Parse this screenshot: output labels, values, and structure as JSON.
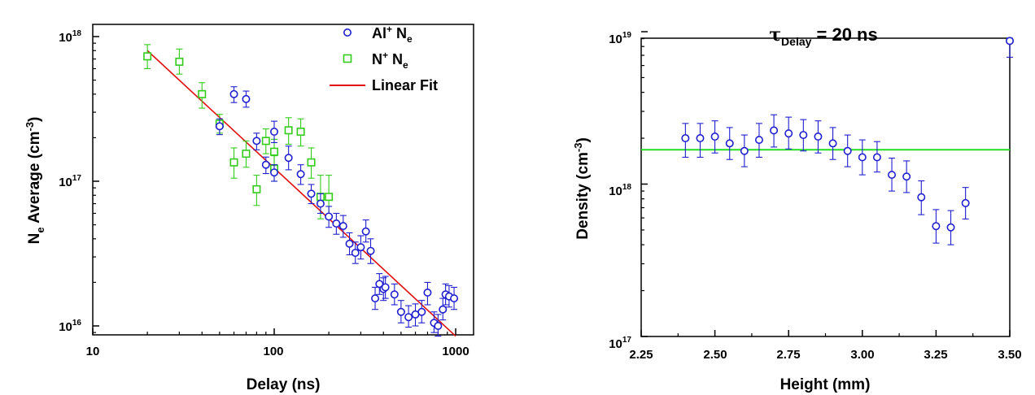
{
  "chart_data": [
    {
      "type": "scatter",
      "title": "",
      "xlabel": {
        "main": "Delay (ns)"
      },
      "ylabel": {
        "N": "N",
        "sub": "e",
        "rest": " Average (cm",
        "sup": "-3",
        "close": ")"
      },
      "x_scale": "log",
      "y_scale": "log",
      "xlim": [
        10,
        1000
      ],
      "ylim": [
        8000000000000000.0,
        1.3e+18
      ],
      "x_ticks": [
        {
          "value": 10,
          "label": "10"
        },
        {
          "value": 100,
          "label": "100"
        },
        {
          "value": 1000,
          "label": "1000"
        }
      ],
      "y_ticks": [
        {
          "value": 1e+16,
          "base": "10",
          "exp": "16"
        },
        {
          "value": 1e+17,
          "base": "10",
          "exp": "17"
        },
        {
          "value": 1e+18,
          "base": "10",
          "exp": "18"
        }
      ],
      "legend_position": "top-right",
      "legend": [
        {
          "key": "al",
          "symbol": "circle",
          "pre": "Al",
          "sup": "+",
          "mid": " N",
          "sub": "e"
        },
        {
          "key": "n",
          "symbol": "square",
          "pre": "N",
          "sup": "+",
          "mid": " N",
          "sub": "e"
        },
        {
          "key": "fit",
          "symbol": "line",
          "pre": "Linear Fit",
          "sup": "",
          "mid": "",
          "sub": ""
        }
      ],
      "series": [
        {
          "key": "al",
          "marker": "circle",
          "color": "#1f1fd0",
          "points": [
            {
              "x": 50,
              "y": 2.4e+17,
              "lo": 2.1e+17,
              "hi": 2.7e+17
            },
            {
              "x": 60,
              "y": 4e+17,
              "lo": 3.5e+17,
              "hi": 4.5e+17
            },
            {
              "x": 70,
              "y": 3.7e+17,
              "lo": 3.25e+17,
              "hi": 4.2e+17
            },
            {
              "x": 80,
              "y": 1.9e+17,
              "lo": 1.65e+17,
              "hi": 2.15e+17
            },
            {
              "x": 90,
              "y": 1.3e+17,
              "lo": 1.13e+17,
              "hi": 1.47e+17
            },
            {
              "x": 100,
              "y": 2.2e+17,
              "lo": 1.85e+17,
              "hi": 2.6e+17
            },
            {
              "x": 100,
              "y": 1.15e+17,
              "lo": 1e+17,
              "hi": 1.3e+17
            },
            {
              "x": 120,
              "y": 1.45e+17,
              "lo": 1.2e+17,
              "hi": 1.75e+17
            },
            {
              "x": 140,
              "y": 1.12e+17,
              "lo": 9.5e+16,
              "hi": 1.3e+17
            },
            {
              "x": 160,
              "y": 8.2e+16,
              "lo": 7e+16,
              "hi": 9.5e+16
            },
            {
              "x": 180,
              "y": 7e+16,
              "lo": 6e+16,
              "hi": 8.2e+16
            },
            {
              "x": 200,
              "y": 5.7e+16,
              "lo": 4.8e+16,
              "hi": 6.7e+16
            },
            {
              "x": 220,
              "y": 5.1e+16,
              "lo": 4.3e+16,
              "hi": 6e+16
            },
            {
              "x": 240,
              "y": 4.9e+16,
              "lo": 4.1e+16,
              "hi": 5.8e+16
            },
            {
              "x": 260,
              "y": 3.7e+16,
              "lo": 3.1e+16,
              "hi": 4.4e+16
            },
            {
              "x": 280,
              "y": 3.2e+16,
              "lo": 2.7e+16,
              "hi": 3.8e+16
            },
            {
              "x": 300,
              "y": 3.5e+16,
              "lo": 2.9e+16,
              "hi": 4.2e+16
            },
            {
              "x": 320,
              "y": 4.5e+16,
              "lo": 3.8e+16,
              "hi": 5.4e+16
            },
            {
              "x": 340,
              "y": 3.3e+16,
              "lo": 2.7e+16,
              "hi": 4e+16
            },
            {
              "x": 360,
              "y": 1.55e+16,
              "lo": 1.3e+16,
              "hi": 1.85e+16
            },
            {
              "x": 380,
              "y": 1.95e+16,
              "lo": 1.65e+16,
              "hi": 2.3e+16
            },
            {
              "x": 400,
              "y": 1.8e+16,
              "lo": 1.5e+16,
              "hi": 2.15e+16
            },
            {
              "x": 410,
              "y": 1.85e+16,
              "lo": 1.55e+16,
              "hi": 2.2e+16
            },
            {
              "x": 460,
              "y": 1.65e+16,
              "lo": 1.4e+16,
              "hi": 1.95e+16
            },
            {
              "x": 500,
              "y": 1.25e+16,
              "lo": 1.05e+16,
              "hi": 1.5e+16
            },
            {
              "x": 550,
              "y": 1.15e+16,
              "lo": 9800000000000000.0,
              "hi": 1.38e+16
            },
            {
              "x": 600,
              "y": 1.2e+16,
              "lo": 1e+16,
              "hi": 1.42e+16
            },
            {
              "x": 650,
              "y": 1.25e+16,
              "lo": 1.05e+16,
              "hi": 1.5e+16
            },
            {
              "x": 700,
              "y": 1.7e+16,
              "lo": 1.4e+16,
              "hi": 2e+16
            },
            {
              "x": 760,
              "y": 1.05e+16,
              "lo": 9000000000000000.0,
              "hi": 1.25e+16
            },
            {
              "x": 800,
              "y": 1e+16,
              "lo": 8500000000000000.0,
              "hi": 1.2e+16
            },
            {
              "x": 850,
              "y": 1.3e+16,
              "lo": 1.1e+16,
              "hi": 1.55e+16
            },
            {
              "x": 880,
              "y": 1.65e+16,
              "lo": 1.4e+16,
              "hi": 1.95e+16
            },
            {
              "x": 920,
              "y": 1.6e+16,
              "lo": 1.35e+16,
              "hi": 1.9e+16
            },
            {
              "x": 980,
              "y": 1.55e+16,
              "lo": 1.3e+16,
              "hi": 1.85e+16
            }
          ]
        },
        {
          "key": "n",
          "marker": "square",
          "color": "#33cc1a",
          "points": [
            {
              "x": 20,
              "y": 7.3e+17,
              "lo": 6e+17,
              "hi": 8.8e+17
            },
            {
              "x": 30,
              "y": 6.7e+17,
              "lo": 5.5e+17,
              "hi": 8.2e+17
            },
            {
              "x": 40,
              "y": 4e+17,
              "lo": 3.2e+17,
              "hi": 4.8e+17
            },
            {
              "x": 50,
              "y": 2.5e+17,
              "lo": 2.15e+17,
              "hi": 2.9e+17
            },
            {
              "x": 60,
              "y": 1.35e+17,
              "lo": 1.05e+17,
              "hi": 1.7e+17
            },
            {
              "x": 70,
              "y": 1.55e+17,
              "lo": 1.25e+17,
              "hi": 1.9e+17
            },
            {
              "x": 80,
              "y": 8.8e+16,
              "lo": 6.8e+16,
              "hi": 1.1e+17
            },
            {
              "x": 90,
              "y": 1.9e+17,
              "lo": 1.55e+17,
              "hi": 2.3e+17
            },
            {
              "x": 100,
              "y": 1.6e+17,
              "lo": 1.3e+17,
              "hi": 1.95e+17
            },
            {
              "x": 100,
              "y": 1.22e+17,
              "lo": 1e+17,
              "hi": 1.5e+17
            },
            {
              "x": 120,
              "y": 2.25e+17,
              "lo": 1.8e+17,
              "hi": 2.75e+17
            },
            {
              "x": 140,
              "y": 2.2e+17,
              "lo": 1.75e+17,
              "hi": 2.7e+17
            },
            {
              "x": 160,
              "y": 1.35e+17,
              "lo": 1.05e+17,
              "hi": 1.7e+17
            },
            {
              "x": 180,
              "y": 7.8e+16,
              "lo": 5.5e+16,
              "hi": 1.1e+17
            },
            {
              "x": 200,
              "y": 7.8e+16,
              "lo": 5.5e+16,
              "hi": 1.1e+17
            }
          ]
        },
        {
          "key": "fit",
          "marker": "line",
          "color": "#e01010",
          "points": [
            {
              "x": 20,
              "y": 8e+17
            },
            {
              "x": 1000,
              "y": 8500000000000000.0
            }
          ]
        }
      ]
    },
    {
      "type": "scatter",
      "title": {
        "tau": "τ",
        "sub": "Delay",
        "rest": " = 20 ns"
      },
      "xlabel": {
        "main": "Height (mm)"
      },
      "ylabel": {
        "pre": "Density (cm",
        "sup": "-3",
        "close": ")"
      },
      "x_scale": "linear",
      "y_scale": "log",
      "xlim": [
        2.25,
        3.5
      ],
      "ylim": [
        1e+17,
        1e+19
      ],
      "x_ticks": [
        {
          "value": 2.25,
          "label": "2.25"
        },
        {
          "value": 2.5,
          "label": "2.50"
        },
        {
          "value": 2.75,
          "label": "2.75"
        },
        {
          "value": 3.0,
          "label": "3.00"
        },
        {
          "value": 3.25,
          "label": "3.25"
        },
        {
          "value": 3.5,
          "label": "3.50"
        }
      ],
      "y_ticks": [
        {
          "value": 1e+17,
          "base": "10",
          "exp": "17"
        },
        {
          "value": 1e+18,
          "base": "10",
          "exp": "18"
        },
        {
          "value": 1e+19,
          "base": "10",
          "exp": "19"
        }
      ],
      "reference_line": {
        "y": 1.68e+18,
        "color": "#22dd22"
      },
      "series": [
        {
          "key": "density",
          "marker": "circle",
          "color": "#1f1fd0",
          "points": [
            {
              "x": 2.4,
              "y": 2e+18,
              "lo": 1.5e+18,
              "hi": 2.5e+18
            },
            {
              "x": 2.45,
              "y": 2e+18,
              "lo": 1.5e+18,
              "hi": 2.5e+18
            },
            {
              "x": 2.5,
              "y": 2.05e+18,
              "lo": 1.6e+18,
              "hi": 2.6e+18
            },
            {
              "x": 2.55,
              "y": 1.85e+18,
              "lo": 1.45e+18,
              "hi": 2.35e+18
            },
            {
              "x": 2.6,
              "y": 1.65e+18,
              "lo": 1.3e+18,
              "hi": 2.1e+18
            },
            {
              "x": 2.65,
              "y": 1.95e+18,
              "lo": 1.5e+18,
              "hi": 2.5e+18
            },
            {
              "x": 2.7,
              "y": 2.25e+18,
              "lo": 1.75e+18,
              "hi": 2.85e+18
            },
            {
              "x": 2.75,
              "y": 2.15e+18,
              "lo": 1.7e+18,
              "hi": 2.75e+18
            },
            {
              "x": 2.8,
              "y": 2.1e+18,
              "lo": 1.65e+18,
              "hi": 2.65e+18
            },
            {
              "x": 2.85,
              "y": 2.05e+18,
              "lo": 1.6e+18,
              "hi": 2.6e+18
            },
            {
              "x": 2.9,
              "y": 1.85e+18,
              "lo": 1.45e+18,
              "hi": 2.35e+18
            },
            {
              "x": 2.95,
              "y": 1.65e+18,
              "lo": 1.3e+18,
              "hi": 2.1e+18
            },
            {
              "x": 3.0,
              "y": 1.5e+18,
              "lo": 1.15e+18,
              "hi": 1.95e+18
            },
            {
              "x": 3.05,
              "y": 1.5e+18,
              "lo": 1.2e+18,
              "hi": 1.9e+18
            },
            {
              "x": 3.1,
              "y": 1.15e+18,
              "lo": 9e+17,
              "hi": 1.48e+18
            },
            {
              "x": 3.15,
              "y": 1.12e+18,
              "lo": 8.8e+17,
              "hi": 1.42e+18
            },
            {
              "x": 3.2,
              "y": 8.2e+17,
              "lo": 6.3e+17,
              "hi": 1.05e+18
            },
            {
              "x": 3.25,
              "y": 5.3e+17,
              "lo": 4.1e+17,
              "hi": 6.8e+17
            },
            {
              "x": 3.3,
              "y": 5.2e+17,
              "lo": 4e+17,
              "hi": 6.7e+17
            },
            {
              "x": 3.35,
              "y": 7.5e+17,
              "lo": 5.9e+17,
              "hi": 9.5e+17
            },
            {
              "x": 3.5,
              "y": 8.7e+18,
              "lo": 6.8e+18,
              "hi": 1e+19
            }
          ]
        }
      ]
    }
  ]
}
